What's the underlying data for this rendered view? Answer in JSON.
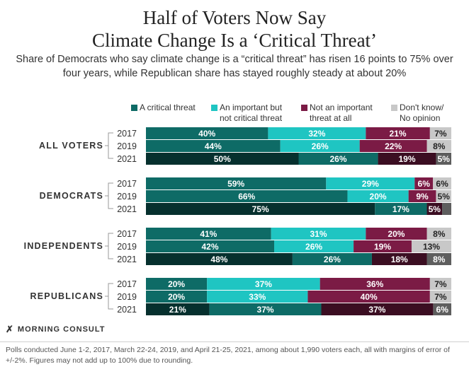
{
  "title_line1": "Half of Voters Now Say",
  "title_line2": "Climate Change Is a ‘Critical Threat’",
  "subtitle": "Share of Democrats who say climate change is a “critical threat” has risen 16 points to 75% over four years, while Republican share has stayed roughly steady at about 20%",
  "brand": "MORNING CONSULT",
  "footnote": "Polls conducted June 1-2, 2017, March 22-24, 2019, and April 21-25, 2021, among about 1,990 voters each, all with margins of error of +/-2%. Figures may not add up to 100% due to rounding.",
  "legend": [
    {
      "line1": "A critical threat",
      "line2": "",
      "color": "#0e6b66"
    },
    {
      "line1": "An important but",
      "line2": "not critical threat",
      "color": "#1fc5c2"
    },
    {
      "line1": "Not an important",
      "line2": "threat at all",
      "color": "#7b1b45"
    },
    {
      "line1": "Don't know/",
      "line2": "No opinion",
      "color": "#c8c8c8"
    }
  ],
  "chart_data": {
    "type": "bar",
    "orientation": "horizontal",
    "stacked": true,
    "normalized": true,
    "categories": [
      "A critical threat",
      "An important but not critical threat",
      "Not an important threat at all",
      "Don't know/No opinion"
    ],
    "xlim": [
      0,
      100
    ],
    "groups": [
      {
        "name": "ALL VOTERS",
        "rows": [
          {
            "year": "2017",
            "values": [
              40,
              32,
              21,
              7
            ]
          },
          {
            "year": "2019",
            "values": [
              44,
              26,
              22,
              8
            ]
          },
          {
            "year": "2021",
            "values": [
              50,
              26,
              19,
              5
            ]
          }
        ]
      },
      {
        "name": "DEMOCRATS",
        "rows": [
          {
            "year": "2017",
            "values": [
              59,
              29,
              6,
              6
            ]
          },
          {
            "year": "2019",
            "values": [
              66,
              20,
              9,
              5
            ]
          },
          {
            "year": "2021",
            "values": [
              75,
              17,
              5,
              3
            ]
          }
        ]
      },
      {
        "name": "INDEPENDENTS",
        "rows": [
          {
            "year": "2017",
            "values": [
              41,
              31,
              20,
              8
            ]
          },
          {
            "year": "2019",
            "values": [
              42,
              26,
              19,
              13
            ]
          },
          {
            "year": "2021",
            "values": [
              48,
              26,
              18,
              8
            ]
          }
        ]
      },
      {
        "name": "REPUBLICANS",
        "rows": [
          {
            "year": "2017",
            "values": [
              20,
              37,
              36,
              7
            ]
          },
          {
            "year": "2019",
            "values": [
              20,
              33,
              40,
              7
            ]
          },
          {
            "year": "2021",
            "values": [
              21,
              37,
              37,
              6
            ]
          }
        ]
      }
    ],
    "visible_labels": [
      [
        "40%",
        "32%",
        "21%",
        "7%"
      ],
      [
        "44%",
        "26%",
        "22%",
        "8%"
      ],
      [
        "50%",
        "26%",
        "19%",
        "5%"
      ],
      [
        "59%",
        "29%",
        "6%",
        "6%"
      ],
      [
        "66%",
        "20%",
        "9%",
        "5%"
      ],
      [
        "75%",
        "17%",
        "5%",
        ""
      ],
      [
        "41%",
        "31%",
        "20%",
        "8%"
      ],
      [
        "42%",
        "26%",
        "19%",
        "13%"
      ],
      [
        "48%",
        "26%",
        "18%",
        "8%"
      ],
      [
        "20%",
        "37%",
        "36%",
        "7%"
      ],
      [
        "20%",
        "33%",
        "40%",
        "7%"
      ],
      [
        "21%",
        "37%",
        "37%",
        "6%"
      ]
    ],
    "colors_2017_2019": [
      "#0e6b66",
      "#1fc5c2",
      "#7b1b45",
      "#c8c8c8"
    ],
    "colors_2021": [
      "#06302e",
      "#0e6b66",
      "#3b0e22",
      "#5e5e5e"
    ]
  }
}
